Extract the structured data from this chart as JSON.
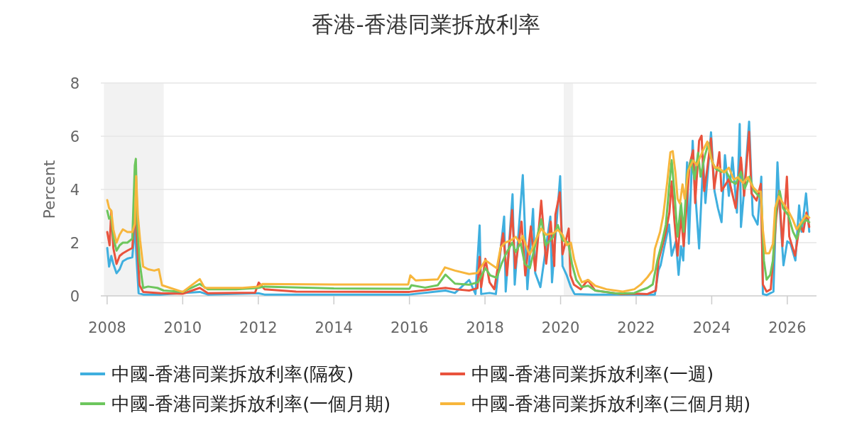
{
  "chart_data": {
    "type": "line",
    "title": "香港-香港同業拆放利率",
    "ylabel": "Percent",
    "xlim": [
      "2007-11-01",
      "2026-10-10"
    ],
    "xticks": [
      "2008",
      "2010",
      "2012",
      "2014",
      "2016",
      "2018",
      "2020",
      "2022",
      "2024",
      "2026"
    ],
    "ylim": [
      0,
      8
    ],
    "yticks": [
      0,
      2,
      4,
      6,
      8
    ],
    "grid": "y",
    "legend": "bottom",
    "line_style": "solid",
    "bands": [
      {
        "axis": "x",
        "from": "2007-12-01",
        "to": "2009-07-01",
        "color": "#f2f2f2"
      },
      {
        "axis": "x",
        "from": "2020-02-01",
        "to": "2020-05-01",
        "color": "#f2f2f2"
      }
    ],
    "series": [
      {
        "name": "中國-香港同業拆放利率(隔夜)",
        "color": "#3fafdf",
        "x": [
          "2008-01-02",
          "2008-01-20",
          "2008-02-10",
          "2008-03-01",
          "2008-04-01",
          "2008-05-01",
          "2008-06-01",
          "2008-07-15",
          "2008-09-01",
          "2008-09-25",
          "2008-10-15",
          "2008-11-01",
          "2008-12-15",
          "2009-06-01",
          "2010-06-15",
          "2010-09-01",
          "2012-01-01",
          "2012-03-01",
          "2016-01-01",
          "2016-12-15",
          "2017-03-17",
          "2017-08-01",
          "2017-10-01",
          "2017-11-10",
          "2017-11-25",
          "2018-02-14",
          "2018-04-16",
          "2018-07-05",
          "2018-07-20",
          "2018-09-24",
          "2018-10-15",
          "2019-01-01",
          "2019-02-14",
          "2019-04-10",
          "2019-05-01",
          "2019-06-20",
          "2019-09-24",
          "2019-10-10",
          "2019-12-28",
          "2020-01-20",
          "2020-03-01",
          "2020-04-10",
          "2020-05-15",
          "2020-11-01",
          "2021-12-15",
          "2022-07-01",
          "2022-08-05",
          "2022-08-25",
          "2022-10-01",
          "2022-11-15",
          "2022-12-10",
          "2023-01-20",
          "2023-02-15",
          "2023-03-10",
          "2023-04-01",
          "2023-05-08",
          "2023-05-25",
          "2023-07-01",
          "2023-07-20",
          "2023-09-01",
          "2023-10-10",
          "2023-11-01",
          "2023-12-25",
          "2024-01-28",
          "2024-03-01",
          "2024-04-05",
          "2024-05-08",
          "2024-06-15",
          "2024-07-20",
          "2024-09-01",
          "2024-09-28",
          "2024-10-10",
          "2024-11-15",
          "2024-12-28",
          "2025-02-01",
          "2025-03-20",
          "2025-04-25",
          "2025-05-10",
          "2025-06-15",
          "2025-08-20",
          "2025-09-28",
          "2025-10-20",
          "2025-11-25",
          "2026-01-01",
          "2026-02-01",
          "2026-03-20",
          "2026-04-25",
          "2026-05-20",
          "2026-07-01",
          "2026-08-01"
        ],
        "values": [
          1.8,
          1.1,
          1.5,
          1.2,
          0.85,
          1.0,
          1.3,
          1.4,
          1.45,
          2.6,
          1.2,
          0.1,
          0.05,
          0.05,
          0.15,
          0.05,
          0.1,
          0.05,
          0.05,
          0.2,
          0.11,
          0.6,
          0.07,
          2.65,
          0.07,
          0.11,
          0.07,
          2.98,
          0.16,
          3.82,
          0.42,
          4.54,
          0.25,
          3.27,
          0.86,
          0.33,
          2.98,
          0.51,
          4.5,
          1.12,
          0.77,
          0.33,
          0.07,
          0.05,
          0.05,
          0.05,
          0.97,
          1.15,
          1.87,
          2.68,
          1.51,
          2.05,
          0.79,
          1.87,
          1.33,
          5.02,
          1.96,
          5.83,
          4.21,
          1.78,
          5.11,
          3.49,
          6.15,
          3.94,
          3.3,
          2.77,
          5.29,
          3.76,
          5.2,
          3.13,
          6.46,
          2.59,
          4.21,
          6.55,
          3.04,
          2.68,
          4.48,
          0.07,
          0.03,
          0.16,
          5.02,
          3.3,
          1.15,
          2.05,
          1.96,
          1.33,
          3.4,
          2.41,
          3.85,
          2.41
        ]
      },
      {
        "name": "中國-香港同業拆放利率(一週)",
        "color": "#e9533d",
        "x": [
          "2008-01-02",
          "2008-01-25",
          "2008-02-10",
          "2008-03-01",
          "2008-04-01",
          "2008-05-01",
          "2008-06-01",
          "2008-07-15",
          "2008-09-01",
          "2008-09-28",
          "2008-10-20",
          "2008-11-10",
          "2008-12-15",
          "2009-06-01",
          "2010-01-01",
          "2010-06-15",
          "2010-09-01",
          "2011-12-01",
          "2012-01-05",
          "2012-03-01",
          "2013-01-01",
          "2016-01-01",
          "2016-12-15",
          "2017-03-17",
          "2017-08-01",
          "2017-10-20",
          "2017-11-10",
          "2017-11-25",
          "2018-01-05",
          "2018-02-14",
          "2018-04-01",
          "2018-06-25",
          "2018-08-01",
          "2018-09-20",
          "2018-10-20",
          "2018-12-20",
          "2019-01-25",
          "2019-03-20",
          "2019-05-01",
          "2019-06-28",
          "2019-08-15",
          "2019-09-28",
          "2019-11-01",
          "2019-11-12",
          "2019-12-25",
          "2020-01-20",
          "2020-03-20",
          "2020-04-05",
          "2020-05-10",
          "2020-07-15",
          "2020-09-20",
          "2020-12-01",
          "2021-08-01",
          "2021-12-15",
          "2022-04-20",
          "2022-07-10",
          "2022-08-05",
          "2022-09-10",
          "2022-10-15",
          "2022-11-18",
          "2022-12-10",
          "2023-01-05",
          "2023-02-05",
          "2023-03-10",
          "2023-04-05",
          "2023-06-01",
          "2023-07-05",
          "2023-07-25",
          "2023-09-01",
          "2023-09-25",
          "2023-10-20",
          "2023-11-15",
          "2023-12-25",
          "2024-01-25",
          "2024-03-15",
          "2024-04-05",
          "2024-06-15",
          "2024-08-20",
          "2024-10-10",
          "2024-11-10",
          "2024-12-28",
          "2025-01-20",
          "2025-03-10",
          "2025-04-20",
          "2025-05-10",
          "2025-06-15",
          "2025-07-25",
          "2025-08-22",
          "2025-09-16",
          "2025-10-15",
          "2025-11-15",
          "2025-12-28",
          "2026-01-20",
          "2026-03-17",
          "2026-05-01",
          "2026-06-05",
          "2026-07-05",
          "2026-08-01"
        ],
        "values": [
          2.4,
          1.9,
          3.2,
          1.8,
          1.2,
          1.5,
          1.6,
          1.7,
          1.8,
          3.3,
          1.8,
          0.4,
          0.15,
          0.1,
          0.08,
          0.3,
          0.1,
          0.12,
          0.5,
          0.25,
          0.16,
          0.15,
          0.3,
          0.25,
          0.2,
          0.29,
          1.47,
          0.33,
          1.39,
          0.51,
          0.25,
          2.35,
          0.77,
          3.23,
          1.04,
          2.79,
          0.77,
          2.61,
          0.95,
          3.58,
          1.21,
          2.79,
          1.12,
          3.05,
          3.89,
          1.56,
          2.53,
          0.77,
          0.42,
          0.25,
          0.6,
          0.2,
          0.07,
          0.09,
          0.07,
          0.2,
          1.33,
          1.87,
          2.41,
          3.13,
          4.3,
          2.86,
          1.51,
          3.04,
          1.87,
          4.93,
          5.47,
          3.49,
          5.83,
          6.02,
          3.94,
          4.66,
          5.92,
          4.03,
          5.4,
          3.94,
          4.39,
          3.3,
          5.2,
          3.76,
          6.17,
          3.85,
          3.58,
          4.21,
          0.43,
          0.16,
          0.25,
          1.6,
          2.95,
          3.94,
          1.87,
          4.48,
          2.23,
          1.51,
          2.68,
          2.41,
          3.13,
          2.59
        ]
      },
      {
        "name": "中國-香港同業拆放利率(一個月期)",
        "color": "#6dc65d",
        "x": [
          "2008-01-02",
          "2008-01-20",
          "2008-02-10",
          "2008-03-01",
          "2008-04-01",
          "2008-05-01",
          "2008-06-01",
          "2008-07-15",
          "2008-09-01",
          "2008-09-25",
          "2008-10-05",
          "2008-10-20",
          "2008-11-10",
          "2008-12-15",
          "2009-02-01",
          "2009-05-01",
          "2009-07-01",
          "2010-01-01",
          "2010-06-15",
          "2010-09-01",
          "2011-06-01",
          "2012-01-01",
          "2012-03-01",
          "2014-01-01",
          "2016-01-01",
          "2016-01-20",
          "2016-06-01",
          "2016-10-01",
          "2016-12-15",
          "2017-03-17",
          "2017-08-01",
          "2017-10-25",
          "2018-01-05",
          "2018-02-20",
          "2018-04-25",
          "2018-06-10",
          "2018-07-20",
          "2018-09-20",
          "2018-10-25",
          "2018-12-10",
          "2019-01-20",
          "2019-03-10",
          "2019-05-01",
          "2019-06-28",
          "2019-08-10",
          "2019-10-15",
          "2019-12-05",
          "2020-01-20",
          "2020-03-15",
          "2020-04-20",
          "2020-06-01",
          "2020-07-25",
          "2020-09-25",
          "2020-12-01",
          "2021-07-01",
          "2021-12-15",
          "2022-01-25",
          "2022-04-20",
          "2022-06-10",
          "2022-07-25",
          "2022-09-10",
          "2022-10-15",
          "2022-11-18",
          "2022-12-10",
          "2023-01-08",
          "2023-02-05",
          "2023-03-10",
          "2023-04-05",
          "2023-05-08",
          "2023-06-15",
          "2023-07-20",
          "2023-08-22",
          "2023-09-15",
          "2023-10-28",
          "2023-12-01",
          "2024-01-05",
          "2024-02-15",
          "2024-04-05",
          "2024-05-15",
          "2024-07-10",
          "2024-08-20",
          "2024-10-10",
          "2024-11-15",
          "2025-01-01",
          "2025-02-15",
          "2025-03-28",
          "2025-04-25",
          "2025-05-20",
          "2025-06-15",
          "2025-07-20",
          "2025-08-15",
          "2025-09-16",
          "2025-10-20",
          "2025-11-20",
          "2026-01-10",
          "2026-02-25",
          "2026-04-01",
          "2026-05-15",
          "2026-07-01",
          "2026-08-01"
        ],
        "values": [
          3.2,
          2.9,
          3.0,
          2.2,
          1.7,
          1.9,
          2.0,
          2.0,
          2.15,
          4.9,
          5.15,
          2.6,
          1.3,
          0.3,
          0.35,
          0.3,
          0.2,
          0.15,
          0.45,
          0.25,
          0.25,
          0.3,
          0.35,
          0.28,
          0.27,
          0.4,
          0.31,
          0.4,
          0.8,
          0.46,
          0.42,
          0.51,
          1.04,
          0.77,
          0.68,
          1.21,
          1.56,
          2.0,
          1.65,
          2.0,
          1.21,
          1.04,
          1.91,
          2.88,
          1.91,
          2.18,
          2.66,
          2.09,
          2.0,
          1.21,
          0.6,
          0.33,
          0.38,
          0.2,
          0.09,
          0.11,
          0.18,
          0.3,
          0.43,
          1.33,
          2.05,
          2.68,
          4.2,
          5.1,
          3.76,
          2.23,
          3.49,
          2.41,
          4.57,
          5.1,
          4.39,
          5.38,
          4.48,
          5.29,
          5.74,
          5.02,
          4.75,
          4.66,
          4.71,
          4.3,
          4.21,
          4.66,
          4.03,
          4.48,
          3.94,
          3.76,
          3.67,
          1.33,
          0.61,
          0.79,
          1.33,
          3.3,
          3.94,
          3.3,
          3.03,
          2.41,
          2.14,
          2.68,
          2.86,
          2.77
        ]
      },
      {
        "name": "中國-香港同業拆放利率(三個月期)",
        "color": "#f7b63c",
        "x": [
          "2008-01-02",
          "2008-01-20",
          "2008-02-10",
          "2008-03-01",
          "2008-04-01",
          "2008-05-01",
          "2008-06-01",
          "2008-07-15",
          "2008-09-01",
          "2008-09-25",
          "2008-10-08",
          "2008-10-25",
          "2008-11-15",
          "2008-12-15",
          "2009-02-01",
          "2009-04-01",
          "2009-05-15",
          "2009-06-15",
          "2009-09-01",
          "2010-01-01",
          "2010-06-15",
          "2010-08-01",
          "2011-03-01",
          "2011-08-01",
          "2012-01-01",
          "2012-02-15",
          "2014-01-01",
          "2015-12-20",
          "2016-01-10",
          "2016-03-01",
          "2016-10-01",
          "2016-12-10",
          "2017-03-17",
          "2017-08-01",
          "2017-10-20",
          "2018-01-05",
          "2018-02-20",
          "2018-04-25",
          "2018-06-01",
          "2018-07-15",
          "2018-09-10",
          "2018-10-25",
          "2018-12-01",
          "2019-01-01",
          "2019-02-15",
          "2019-03-10",
          "2019-05-05",
          "2019-06-28",
          "2019-08-15",
          "2019-10-20",
          "2019-12-05",
          "2020-01-20",
          "2020-03-01",
          "2020-04-10",
          "2020-05-10",
          "2020-06-25",
          "2020-07-25",
          "2020-09-25",
          "2020-12-01",
          "2021-03-20",
          "2021-08-25",
          "2021-12-15",
          "2022-02-15",
          "2022-04-20",
          "2022-06-10",
          "2022-07-01",
          "2022-08-20",
          "2022-09-20",
          "2022-10-28",
          "2022-11-28",
          "2022-12-20",
          "2023-01-15",
          "2023-02-05",
          "2023-02-28",
          "2023-03-25",
          "2023-04-15",
          "2023-05-20",
          "2023-07-05",
          "2023-08-10",
          "2023-10-05",
          "2023-11-20",
          "2023-12-25",
          "2024-01-30",
          "2024-03-05",
          "2024-05-01",
          "2024-06-15",
          "2024-08-01",
          "2024-09-10",
          "2024-10-30",
          "2024-12-15",
          "2025-02-01",
          "2025-03-17",
          "2025-04-20",
          "2025-05-10",
          "2025-06-05",
          "2025-07-10",
          "2025-08-15",
          "2025-09-05",
          "2025-10-10",
          "2025-11-15",
          "2026-01-10",
          "2026-02-25",
          "2026-04-01",
          "2026-05-15",
          "2026-07-01",
          "2026-08-01"
        ],
        "values": [
          3.6,
          3.3,
          3.2,
          2.5,
          2.0,
          2.3,
          2.5,
          2.4,
          2.4,
          2.7,
          4.5,
          3.0,
          2.1,
          1.1,
          1.0,
          0.95,
          1.0,
          0.4,
          0.3,
          0.15,
          0.63,
          0.3,
          0.3,
          0.3,
          0.35,
          0.45,
          0.43,
          0.43,
          0.77,
          0.58,
          0.62,
          1.07,
          0.95,
          0.82,
          0.86,
          1.34,
          1.21,
          1.04,
          1.82,
          2.0,
          2.09,
          2.22,
          2.0,
          2.26,
          1.74,
          1.56,
          2.09,
          2.53,
          2.3,
          2.35,
          2.48,
          2.3,
          1.91,
          2.0,
          1.39,
          0.77,
          0.51,
          0.6,
          0.38,
          0.25,
          0.16,
          0.25,
          0.43,
          0.7,
          0.97,
          1.77,
          2.4,
          3.03,
          4.28,
          5.4,
          5.44,
          4.64,
          3.65,
          3.47,
          4.19,
          3.65,
          4.73,
          5.09,
          4.91,
          5.44,
          5.8,
          5.18,
          4.82,
          4.82,
          4.64,
          4.82,
          4.37,
          4.46,
          4.24,
          4.46,
          4.1,
          3.92,
          3.92,
          2.48,
          1.6,
          1.6,
          1.95,
          3.3,
          3.74,
          3.52,
          3.2,
          2.85,
          2.5,
          2.76,
          3.03,
          2.94
        ]
      }
    ]
  }
}
